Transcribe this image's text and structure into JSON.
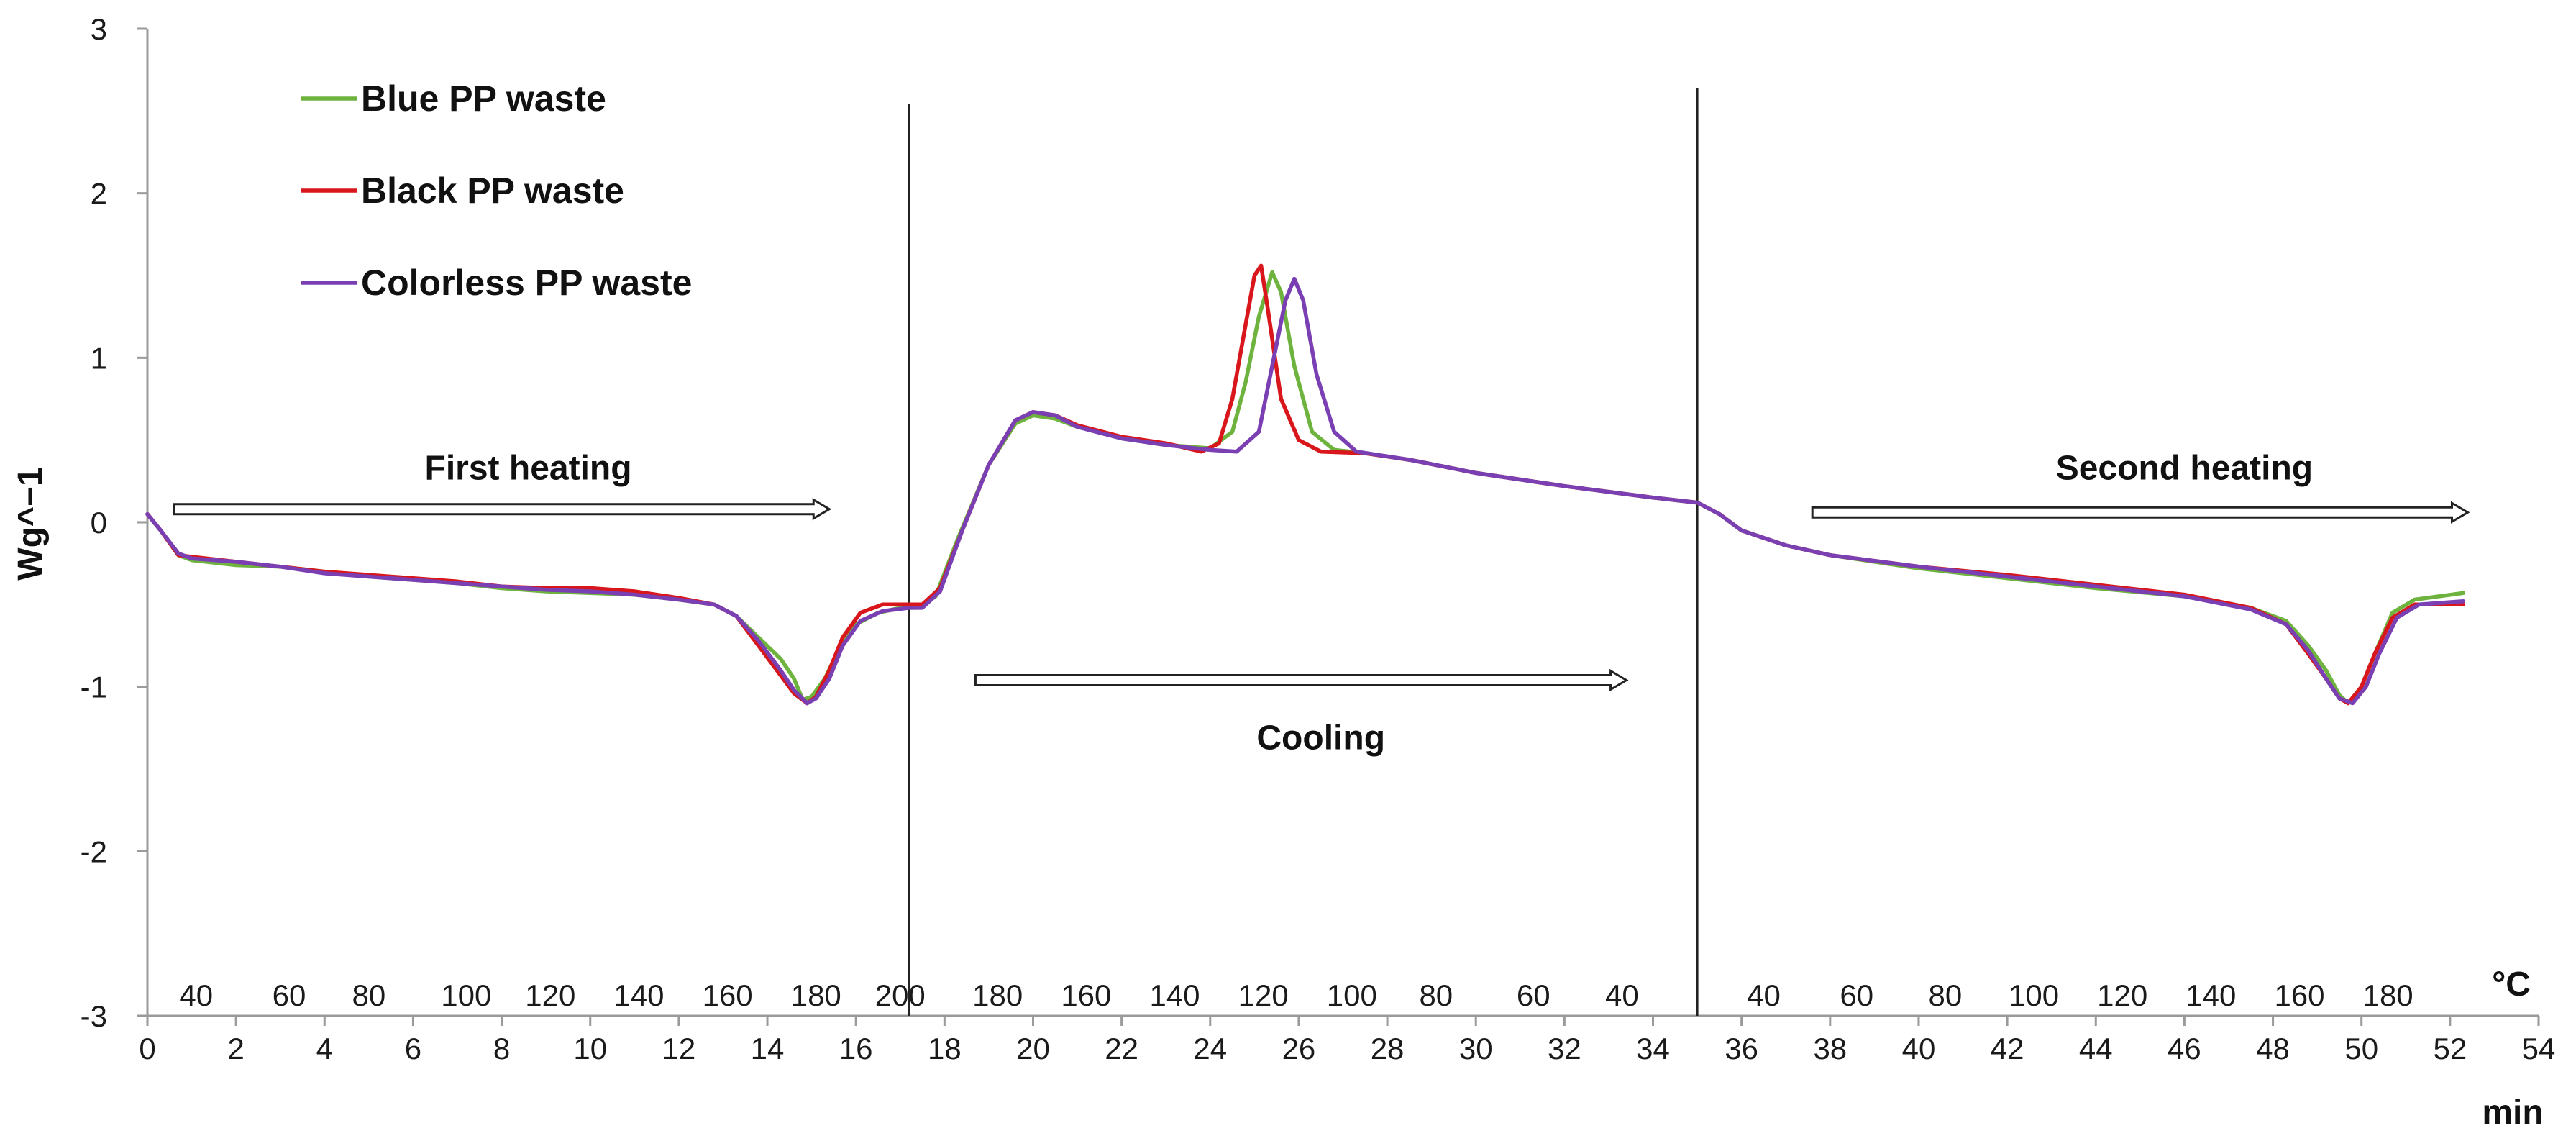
{
  "chart_data": {
    "type": "line",
    "title": "",
    "ylabel": "Wg^−1",
    "xlabel": "min",
    "ylim": [
      -3,
      3
    ],
    "xlim": [
      0,
      54
    ],
    "yticks": [
      "3",
      "2",
      "1",
      "0",
      "-1",
      "-2",
      "-3"
    ],
    "xticks": [
      "0",
      "2",
      "4",
      "6",
      "8",
      "10",
      "12",
      "14",
      "16",
      "18",
      "20",
      "22",
      "24",
      "26",
      "28",
      "30",
      "32",
      "34",
      "36",
      "38",
      "40",
      "42",
      "44",
      "46",
      "48",
      "50",
      "52",
      "54"
    ],
    "temp_unit": "°C",
    "temp_labels": [
      {
        "t": 1.1,
        "label": "40"
      },
      {
        "t": 3.2,
        "label": "60"
      },
      {
        "t": 5.0,
        "label": "80"
      },
      {
        "t": 7.2,
        "label": "100"
      },
      {
        "t": 9.1,
        "label": "120"
      },
      {
        "t": 11.1,
        "label": "140"
      },
      {
        "t": 13.1,
        "label": "160"
      },
      {
        "t": 15.1,
        "label": "180"
      },
      {
        "t": 17.0,
        "label": "200"
      },
      {
        "t": 19.2,
        "label": "180"
      },
      {
        "t": 21.2,
        "label": "160"
      },
      {
        "t": 23.2,
        "label": "140"
      },
      {
        "t": 25.2,
        "label": "120"
      },
      {
        "t": 27.2,
        "label": "100"
      },
      {
        "t": 29.1,
        "label": "80"
      },
      {
        "t": 31.3,
        "label": "60"
      },
      {
        "t": 33.3,
        "label": "40"
      },
      {
        "t": 36.5,
        "label": "40"
      },
      {
        "t": 38.6,
        "label": "60"
      },
      {
        "t": 40.6,
        "label": "80"
      },
      {
        "t": 42.6,
        "label": "100"
      },
      {
        "t": 44.6,
        "label": "120"
      },
      {
        "t": 46.6,
        "label": "140"
      },
      {
        "t": 48.6,
        "label": "160"
      },
      {
        "t": 50.6,
        "label": "180"
      }
    ],
    "dividers": [
      17.2,
      35.0
    ],
    "annotations": [
      {
        "text": "First heating",
        "x": 8.6,
        "y": 0.33,
        "arrow": [
          0.6,
          15.4,
          0.08
        ]
      },
      {
        "text": "Cooling",
        "x": 26.5,
        "y": -1.31,
        "arrow": [
          18.7,
          33.4,
          -0.96
        ]
      },
      {
        "text": "Second heating",
        "x": 46.0,
        "y": 0.33,
        "arrow": [
          37.6,
          52.4,
          0.06
        ]
      }
    ],
    "series": [
      {
        "name": "Blue PP waste",
        "color": "#6fb33f",
        "points": [
          [
            0,
            0.05
          ],
          [
            0.3,
            -0.05
          ],
          [
            0.7,
            -0.2
          ],
          [
            1.0,
            -0.23
          ],
          [
            2,
            -0.26
          ],
          [
            3,
            -0.27
          ],
          [
            4,
            -0.3
          ],
          [
            5,
            -0.33
          ],
          [
            6,
            -0.35
          ],
          [
            7,
            -0.37
          ],
          [
            8,
            -0.4
          ],
          [
            9,
            -0.42
          ],
          [
            10,
            -0.43
          ],
          [
            11,
            -0.44
          ],
          [
            12,
            -0.47
          ],
          [
            12.8,
            -0.5
          ],
          [
            13.3,
            -0.57
          ],
          [
            13.8,
            -0.7
          ],
          [
            14.3,
            -0.83
          ],
          [
            14.6,
            -0.95
          ],
          [
            14.8,
            -1.08
          ],
          [
            15.0,
            -1.06
          ],
          [
            15.3,
            -0.95
          ],
          [
            15.6,
            -0.78
          ],
          [
            16.0,
            -0.62
          ],
          [
            16.5,
            -0.55
          ],
          [
            17.0,
            -0.52
          ],
          [
            17.4,
            -0.52
          ],
          [
            17.8,
            -0.45
          ],
          [
            18.3,
            -0.1
          ],
          [
            19.0,
            0.35
          ],
          [
            19.6,
            0.6
          ],
          [
            20.0,
            0.65
          ],
          [
            20.5,
            0.63
          ],
          [
            21,
            0.58
          ],
          [
            22,
            0.51
          ],
          [
            23,
            0.47
          ],
          [
            24,
            0.45
          ],
          [
            24.5,
            0.55
          ],
          [
            24.8,
            0.85
          ],
          [
            25.1,
            1.25
          ],
          [
            25.4,
            1.52
          ],
          [
            25.6,
            1.4
          ],
          [
            25.9,
            0.95
          ],
          [
            26.3,
            0.55
          ],
          [
            26.8,
            0.44
          ],
          [
            27.5,
            0.42
          ],
          [
            28.5,
            0.38
          ],
          [
            30,
            0.3
          ],
          [
            32,
            0.22
          ],
          [
            34,
            0.15
          ],
          [
            35,
            0.12
          ],
          [
            35.5,
            0.05
          ],
          [
            36,
            -0.05
          ],
          [
            37,
            -0.14
          ],
          [
            38,
            -0.2
          ],
          [
            40,
            -0.28
          ],
          [
            42,
            -0.34
          ],
          [
            44,
            -0.4
          ],
          [
            46,
            -0.45
          ],
          [
            47.5,
            -0.52
          ],
          [
            48.3,
            -0.6
          ],
          [
            48.8,
            -0.75
          ],
          [
            49.2,
            -0.9
          ],
          [
            49.5,
            -1.05
          ],
          [
            49.7,
            -1.1
          ],
          [
            50.0,
            -1.0
          ],
          [
            50.3,
            -0.8
          ],
          [
            50.7,
            -0.55
          ],
          [
            51.2,
            -0.47
          ],
          [
            52.3,
            -0.43
          ]
        ]
      },
      {
        "name": "Black PP waste",
        "color": "#d8161b",
        "points": [
          [
            0,
            0.05
          ],
          [
            0.3,
            -0.05
          ],
          [
            0.7,
            -0.2
          ],
          [
            1.0,
            -0.21
          ],
          [
            2,
            -0.24
          ],
          [
            3,
            -0.27
          ],
          [
            4,
            -0.3
          ],
          [
            5,
            -0.32
          ],
          [
            6,
            -0.34
          ],
          [
            7,
            -0.36
          ],
          [
            8,
            -0.39
          ],
          [
            9,
            -0.4
          ],
          [
            10,
            -0.4
          ],
          [
            11,
            -0.42
          ],
          [
            12,
            -0.46
          ],
          [
            12.8,
            -0.5
          ],
          [
            13.3,
            -0.57
          ],
          [
            13.8,
            -0.75
          ],
          [
            14.3,
            -0.93
          ],
          [
            14.6,
            -1.04
          ],
          [
            14.9,
            -1.1
          ],
          [
            15.1,
            -1.06
          ],
          [
            15.4,
            -0.9
          ],
          [
            15.7,
            -0.7
          ],
          [
            16.1,
            -0.55
          ],
          [
            16.6,
            -0.5
          ],
          [
            17.2,
            -0.5
          ],
          [
            17.5,
            -0.5
          ],
          [
            17.9,
            -0.4
          ],
          [
            18.4,
            -0.05
          ],
          [
            19.0,
            0.35
          ],
          [
            19.6,
            0.62
          ],
          [
            20.0,
            0.67
          ],
          [
            20.5,
            0.65
          ],
          [
            21,
            0.59
          ],
          [
            22,
            0.52
          ],
          [
            23,
            0.48
          ],
          [
            23.8,
            0.43
          ],
          [
            24.2,
            0.48
          ],
          [
            24.5,
            0.75
          ],
          [
            24.8,
            1.2
          ],
          [
            25.0,
            1.5
          ],
          [
            25.15,
            1.56
          ],
          [
            25.3,
            1.3
          ],
          [
            25.6,
            0.75
          ],
          [
            26.0,
            0.5
          ],
          [
            26.5,
            0.43
          ],
          [
            27.5,
            0.42
          ],
          [
            28.5,
            0.38
          ],
          [
            30,
            0.3
          ],
          [
            32,
            0.22
          ],
          [
            34,
            0.15
          ],
          [
            35,
            0.12
          ],
          [
            35.5,
            0.05
          ],
          [
            36,
            -0.05
          ],
          [
            37,
            -0.14
          ],
          [
            38,
            -0.2
          ],
          [
            40,
            -0.27
          ],
          [
            42,
            -0.32
          ],
          [
            44,
            -0.38
          ],
          [
            46,
            -0.44
          ],
          [
            47.5,
            -0.52
          ],
          [
            48.3,
            -0.62
          ],
          [
            48.8,
            -0.8
          ],
          [
            49.2,
            -0.95
          ],
          [
            49.5,
            -1.07
          ],
          [
            49.7,
            -1.1
          ],
          [
            50.0,
            -1.0
          ],
          [
            50.3,
            -0.8
          ],
          [
            50.7,
            -0.58
          ],
          [
            51.2,
            -0.5
          ],
          [
            52.3,
            -0.5
          ]
        ]
      },
      {
        "name": "Colorless PP waste",
        "color": "#7a3fb3",
        "points": [
          [
            0,
            0.05
          ],
          [
            0.3,
            -0.05
          ],
          [
            0.7,
            -0.19
          ],
          [
            1.0,
            -0.22
          ],
          [
            2,
            -0.24
          ],
          [
            3,
            -0.27
          ],
          [
            4,
            -0.31
          ],
          [
            5,
            -0.33
          ],
          [
            6,
            -0.35
          ],
          [
            7,
            -0.37
          ],
          [
            8,
            -0.39
          ],
          [
            9,
            -0.41
          ],
          [
            10,
            -0.42
          ],
          [
            11,
            -0.44
          ],
          [
            12,
            -0.47
          ],
          [
            12.8,
            -0.5
          ],
          [
            13.3,
            -0.57
          ],
          [
            13.8,
            -0.72
          ],
          [
            14.3,
            -0.9
          ],
          [
            14.6,
            -1.02
          ],
          [
            14.9,
            -1.1
          ],
          [
            15.1,
            -1.07
          ],
          [
            15.4,
            -0.95
          ],
          [
            15.7,
            -0.75
          ],
          [
            16.1,
            -0.6
          ],
          [
            16.6,
            -0.54
          ],
          [
            17.2,
            -0.52
          ],
          [
            17.5,
            -0.52
          ],
          [
            17.9,
            -0.42
          ],
          [
            18.4,
            -0.05
          ],
          [
            19.0,
            0.35
          ],
          [
            19.6,
            0.62
          ],
          [
            20.0,
            0.67
          ],
          [
            20.5,
            0.65
          ],
          [
            21,
            0.58
          ],
          [
            22,
            0.51
          ],
          [
            23,
            0.47
          ],
          [
            24,
            0.44
          ],
          [
            24.6,
            0.43
          ],
          [
            25.1,
            0.55
          ],
          [
            25.4,
            0.95
          ],
          [
            25.7,
            1.35
          ],
          [
            25.9,
            1.48
          ],
          [
            26.1,
            1.35
          ],
          [
            26.4,
            0.9
          ],
          [
            26.8,
            0.55
          ],
          [
            27.3,
            0.43
          ],
          [
            28.5,
            0.38
          ],
          [
            30,
            0.3
          ],
          [
            32,
            0.22
          ],
          [
            34,
            0.15
          ],
          [
            35,
            0.12
          ],
          [
            35.5,
            0.05
          ],
          [
            36,
            -0.05
          ],
          [
            37,
            -0.14
          ],
          [
            38,
            -0.2
          ],
          [
            40,
            -0.27
          ],
          [
            42,
            -0.33
          ],
          [
            44,
            -0.39
          ],
          [
            46,
            -0.45
          ],
          [
            47.5,
            -0.53
          ],
          [
            48.3,
            -0.62
          ],
          [
            48.8,
            -0.78
          ],
          [
            49.2,
            -0.95
          ],
          [
            49.5,
            -1.07
          ],
          [
            49.8,
            -1.1
          ],
          [
            50.1,
            -1.0
          ],
          [
            50.4,
            -0.8
          ],
          [
            50.8,
            -0.58
          ],
          [
            51.3,
            -0.5
          ],
          [
            52.3,
            -0.48
          ]
        ]
      }
    ]
  }
}
